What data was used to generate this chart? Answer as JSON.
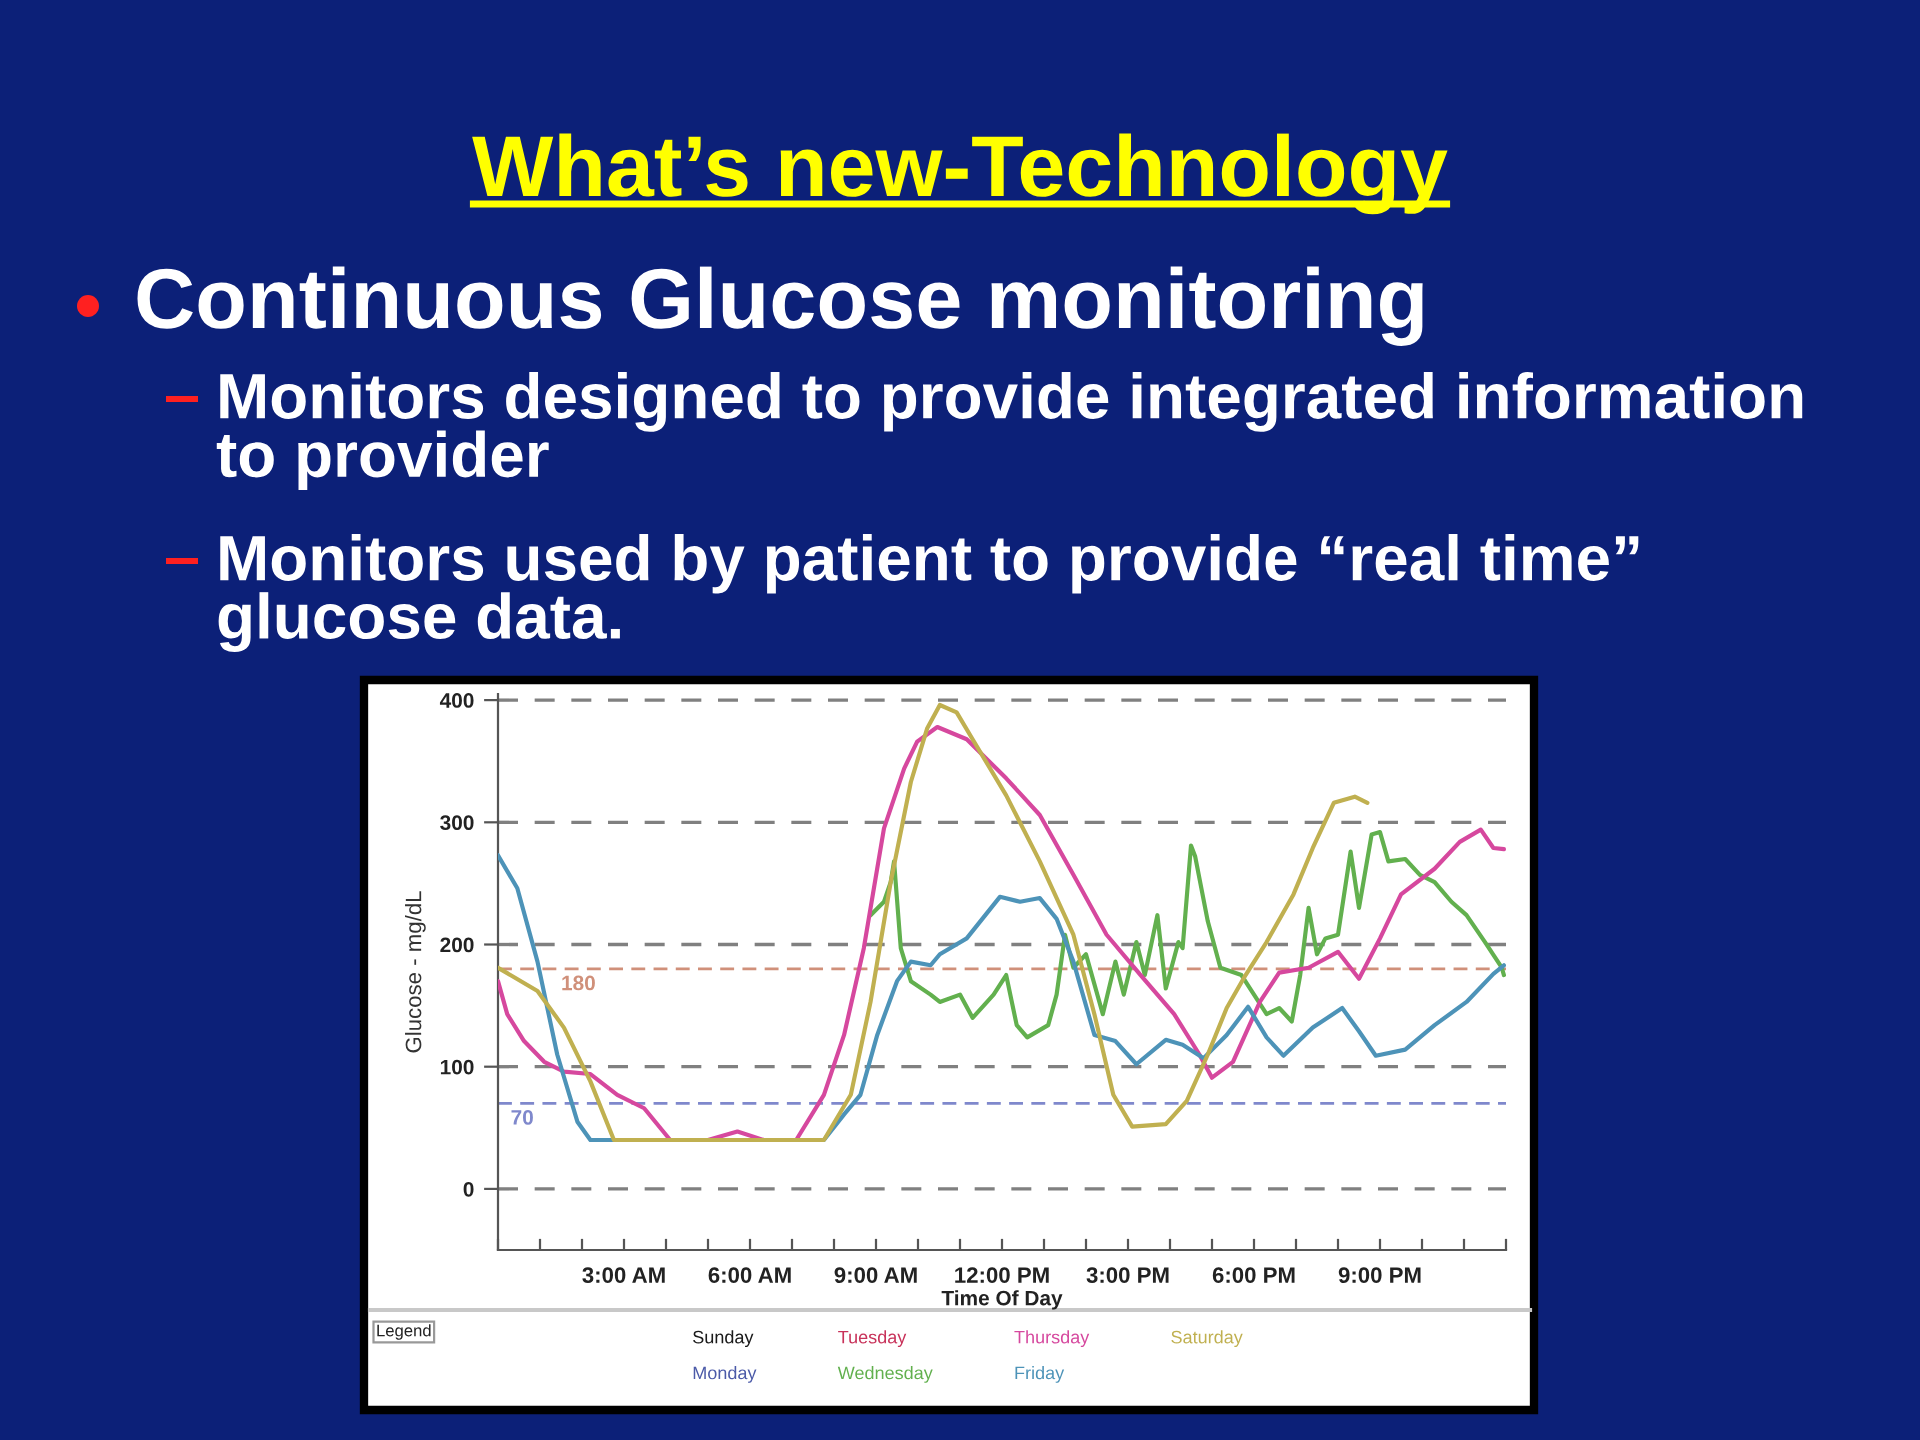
{
  "chart_data": {
    "type": "line",
    "title": "What’s new-Technology",
    "subtitle": "Continuous Glucose monitoring",
    "annotations": [
      "Monitors designed to provide integrated information to provider",
      "Monitors used by patient to provide “real time” glucose data."
    ],
    "xlabel": "Time Of Day",
    "ylabel": "Glucose - mg/dL",
    "legend_title": "Legend",
    "legend": "bottom",
    "grid": "y",
    "marker": "none",
    "line_style": "solid",
    "xlim": [
      0,
      24
    ],
    "xticks": [
      {
        "value": 0,
        "label": null
      },
      {
        "value": 1,
        "label": null
      },
      {
        "value": 2,
        "label": null
      },
      {
        "value": 3,
        "label": "3:00 AM"
      },
      {
        "value": 4,
        "label": null
      },
      {
        "value": 5,
        "label": null
      },
      {
        "value": 6,
        "label": "6:00 AM"
      },
      {
        "value": 7,
        "label": null
      },
      {
        "value": 8,
        "label": null
      },
      {
        "value": 9,
        "label": "9:00 AM"
      },
      {
        "value": 10,
        "label": null
      },
      {
        "value": 11,
        "label": null
      },
      {
        "value": 12,
        "label": "12:00 PM"
      },
      {
        "value": 13,
        "label": null
      },
      {
        "value": 14,
        "label": null
      },
      {
        "value": 15,
        "label": "3:00 PM"
      },
      {
        "value": 16,
        "label": null
      },
      {
        "value": 17,
        "label": null
      },
      {
        "value": 18,
        "label": "6:00 PM"
      },
      {
        "value": 19,
        "label": null
      },
      {
        "value": 20,
        "label": null
      },
      {
        "value": 21,
        "label": "9:00 PM"
      },
      {
        "value": 22,
        "label": null
      },
      {
        "value": 23,
        "label": null
      },
      {
        "value": 24,
        "label": null
      }
    ],
    "ylim": [
      -50,
      405
    ],
    "yticks": [
      0,
      100,
      200,
      300,
      400
    ],
    "ref_lines": [
      {
        "axis": "y",
        "value": 180,
        "label": "180",
        "color": "#d0907a",
        "line_style": "dashed"
      },
      {
        "axis": "y",
        "value": 70,
        "label": "70",
        "color": "#7f88cc",
        "line_style": "dashed"
      }
    ],
    "series": [
      {
        "name": "Sunday",
        "color": "#1a1a1a"
      },
      {
        "name": "Monday",
        "color": "#4b5aa8"
      },
      {
        "name": "Tuesday",
        "color": "#c8325a"
      },
      {
        "name": "Wednesday",
        "color": "#62b04e",
        "x": [
          8.87,
          9.19,
          9.35,
          9.43,
          9.59,
          9.83,
          10.3,
          10.52,
          11.0,
          11.3,
          11.8,
          12.1,
          12.35,
          12.6,
          13.1,
          13.3,
          13.5,
          13.7,
          14.0,
          14.4,
          14.7,
          14.9,
          15.2,
          15.4,
          15.7,
          15.9,
          16.2,
          16.3,
          16.5,
          16.6,
          16.9,
          17.2,
          17.7,
          18.0,
          18.3,
          18.6,
          18.9,
          19.1,
          19.3,
          19.5,
          19.7,
          20.0,
          20.3,
          20.5,
          20.8,
          21.0,
          21.2,
          21.6,
          21.95,
          22.3,
          22.7,
          23.06,
          23.5,
          23.9,
          23.95
        ],
        "values": [
          224,
          235,
          251,
          268,
          197,
          170,
          159,
          153,
          159,
          140,
          159,
          175,
          134,
          124,
          134,
          159,
          208,
          181,
          192,
          143,
          186,
          159,
          202,
          175,
          224,
          164,
          202,
          197,
          281,
          272,
          219,
          181,
          175,
          159,
          143,
          148,
          137,
          175,
          230,
          192,
          205,
          208,
          276,
          230,
          290,
          292,
          268,
          270,
          257,
          251,
          235,
          224,
          202,
          181,
          175
        ]
      },
      {
        "name": "Thursday",
        "color": "#d6489e",
        "x": [
          0,
          0.22,
          0.62,
          1.1,
          1.57,
          2.2,
          2.84,
          3.48,
          4.1,
          5.0,
          5.7,
          6.33,
          7.1,
          7.76,
          8.24,
          8.71,
          9.19,
          9.67,
          9.98,
          10.46,
          11.16,
          12.1,
          12.9,
          13.7,
          14.49,
          15.3,
          16.1,
          16.7,
          17.0,
          17.5,
          18.14,
          18.6,
          19.3,
          20.0,
          20.5,
          21.0,
          21.5,
          22.3,
          22.9,
          23.4,
          23.7,
          23.95
        ],
        "values": [
          170,
          143,
          121,
          104,
          96,
          94,
          77,
          66,
          40,
          40,
          47,
          40,
          40,
          77,
          126,
          197,
          295,
          344,
          366,
          378,
          368,
          336,
          306,
          257,
          208,
          175,
          143,
          110,
          91,
          104,
          153,
          177,
          181,
          194,
          172,
          205,
          241,
          262,
          284,
          294,
          279,
          278
        ]
      },
      {
        "name": "Friday",
        "color": "#4d93b8",
        "x": [
          0,
          0.46,
          0.94,
          1.41,
          1.89,
          2.2,
          7.76,
          8.24,
          8.63,
          9.03,
          9.5,
          9.83,
          10.3,
          10.52,
          11.16,
          11.95,
          12.43,
          12.9,
          13.3,
          13.7,
          14.2,
          14.7,
          15.2,
          15.9,
          16.3,
          16.8,
          17.35,
          17.86,
          18.3,
          18.7,
          19.4,
          20.1,
          20.5,
          20.9,
          21.6,
          22.3,
          23.06,
          23.7,
          23.95
        ],
        "values": [
          273,
          246,
          186,
          110,
          55,
          40,
          40,
          61,
          77,
          126,
          170,
          186,
          183,
          192,
          205,
          239,
          235,
          238,
          221,
          186,
          126,
          121,
          102,
          122,
          118,
          107,
          126,
          149,
          124,
          109,
          132,
          148,
          129,
          109,
          114,
          134,
          153,
          176,
          183
        ]
      },
      {
        "name": "Saturday",
        "color": "#c0b050",
        "x": [
          0,
          0.94,
          1.57,
          2.2,
          2.76,
          7.76,
          8.4,
          8.87,
          9.35,
          9.83,
          10.22,
          10.52,
          10.92,
          11.3,
          12.1,
          12.9,
          13.7,
          14.2,
          14.65,
          15.1,
          15.9,
          16.4,
          16.9,
          17.35,
          17.8,
          18.3,
          18.94,
          19.4,
          19.9,
          20.4,
          20.7
        ],
        "values": [
          181,
          162,
          132,
          88,
          40,
          40,
          77,
          153,
          251,
          333,
          377,
          396,
          390,
          368,
          322,
          268,
          208,
          143,
          77,
          51,
          53,
          72,
          110,
          148,
          175,
          202,
          241,
          279,
          316,
          321,
          316
        ]
      }
    ]
  }
}
